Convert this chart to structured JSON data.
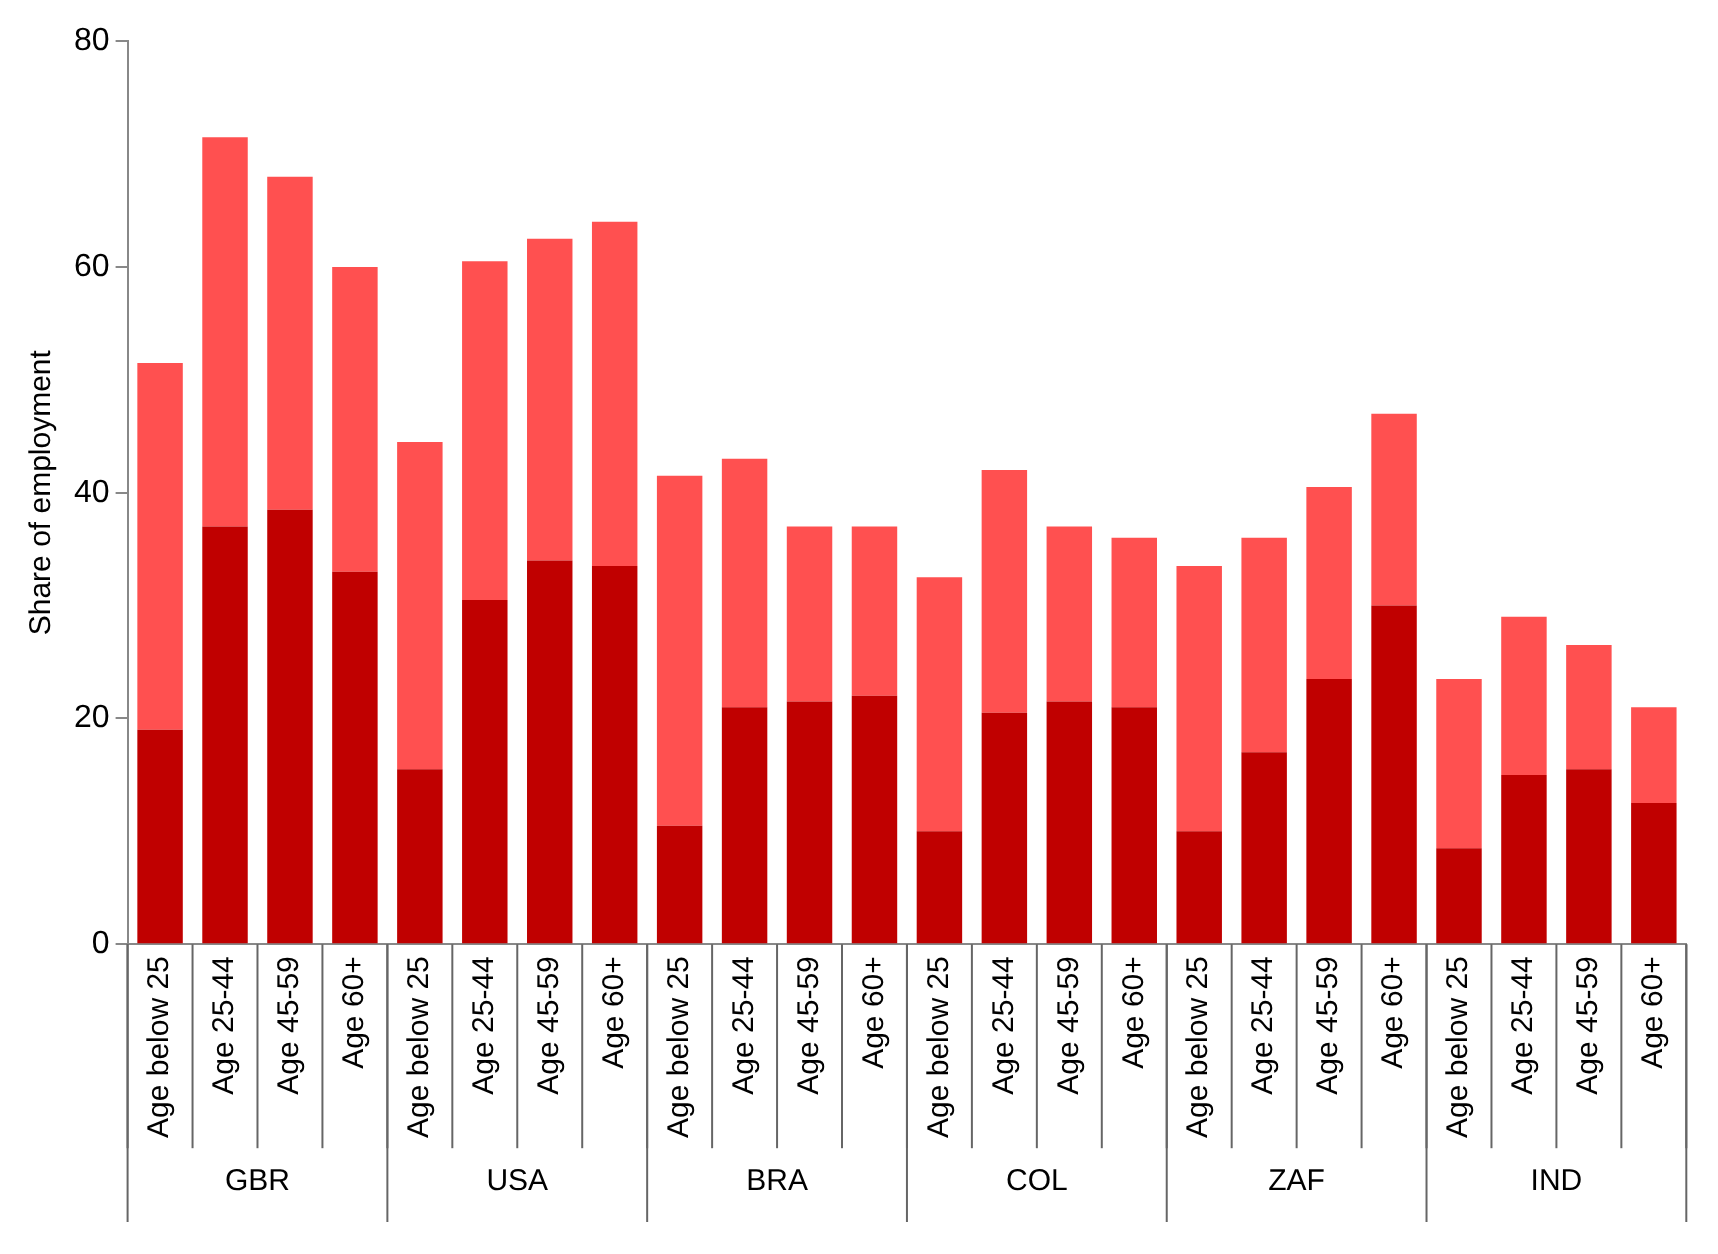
{
  "chart_data": {
    "type": "bar",
    "ylabel": "Share of employment",
    "stacked": true,
    "grid": false,
    "legend": false,
    "categories": [
      "Age below 25",
      "Age 25-44",
      "Age 45-59",
      "Age 60+",
      "Age below 25",
      "Age 25-44",
      "Age 45-59",
      "Age 60+",
      "Age below 25",
      "Age 25-44",
      "Age 45-59",
      "Age 60+",
      "Age below 25",
      "Age 25-44",
      "Age 45-59",
      "Age 60+",
      "Age below 25",
      "Age 25-44",
      "Age 45-59",
      "Age 60+",
      "Age below 25",
      "Age 25-44",
      "Age 45-59",
      "Age 60+"
    ],
    "annotations": [
      "GBR",
      "USA",
      "BRA",
      "COL",
      "ZAF",
      "IND"
    ],
    "series": [
      {
        "color": "#c00000",
        "values": [
          19,
          37,
          38.5,
          33,
          15.5,
          30.5,
          34,
          33.5,
          10.5,
          21,
          21.5,
          22,
          10,
          20.5,
          21.5,
          21,
          10,
          17,
          23.5,
          30,
          8.5,
          15,
          15.5,
          12.5
        ]
      },
      {
        "color": "#ff5050",
        "values": [
          32.5,
          34.5,
          29.5,
          27,
          29,
          30,
          28.5,
          30.5,
          31,
          22,
          15.5,
          15,
          22.5,
          21.5,
          15.5,
          15,
          23.5,
          19,
          17,
          17,
          15,
          14,
          11,
          8.5
        ]
      }
    ],
    "ylim": [
      0,
      80
    ],
    "yticks": [
      0,
      20,
      40,
      60,
      80
    ]
  }
}
